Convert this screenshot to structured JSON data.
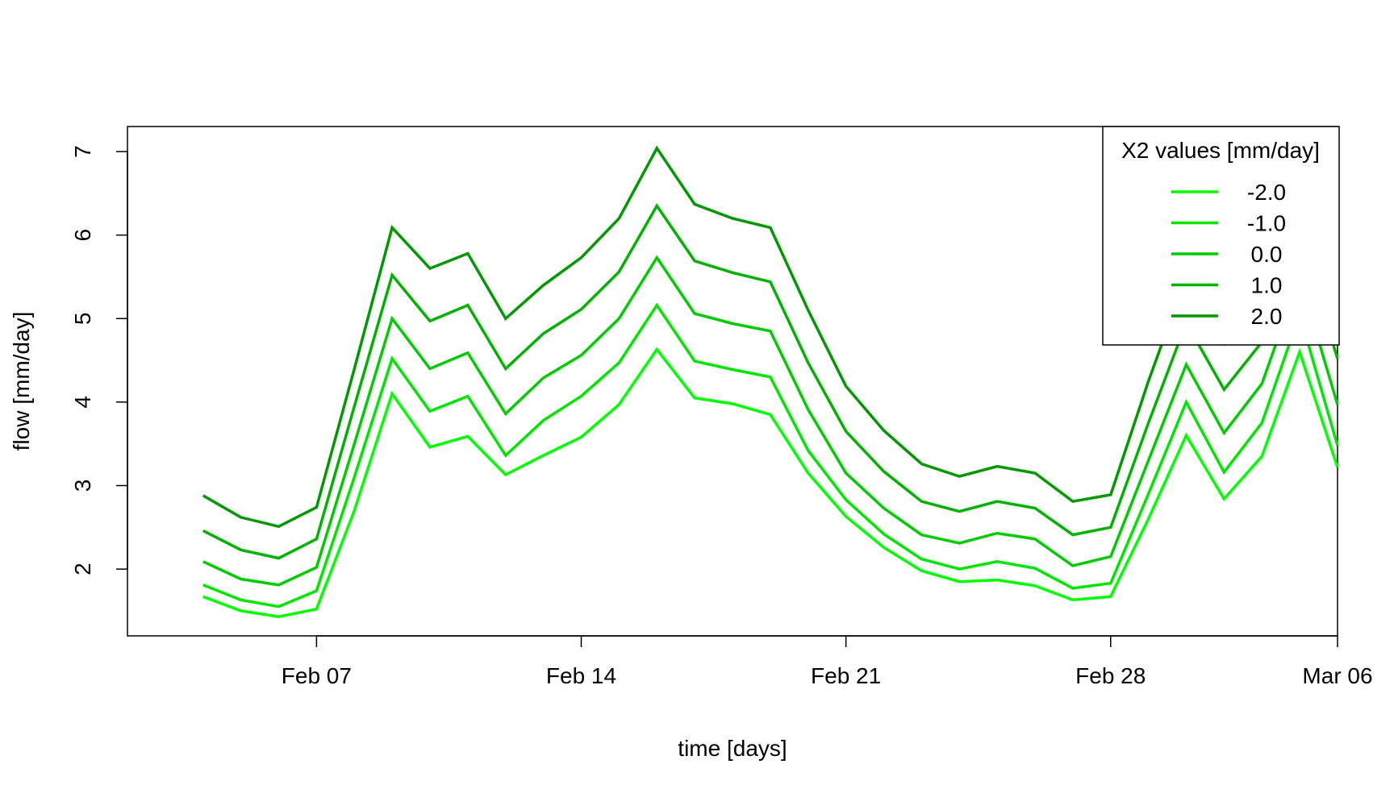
{
  "chart_data": {
    "type": "line",
    "title": "",
    "xlabel": "time [days]",
    "ylabel": "flow [mm/day]",
    "x_ticks": [
      "Feb 07",
      "Feb 14",
      "Feb 21",
      "Feb 28",
      "Mar 06"
    ],
    "x_tick_dates": [
      "2022-02-07",
      "2022-02-14",
      "2022-02-21",
      "2022-02-28",
      "2022-03-06"
    ],
    "y_ticks": [
      2,
      3,
      4,
      5,
      6,
      7
    ],
    "xlim": [
      "2022-02-02",
      "2022-03-06"
    ],
    "ylim": [
      1.2,
      7.3
    ],
    "grid": false,
    "legend": {
      "title": "X2 values [mm/day]",
      "position": "top-right"
    },
    "x": [
      "2022-02-04",
      "2022-02-05",
      "2022-02-06",
      "2022-02-07",
      "2022-02-08",
      "2022-02-09",
      "2022-02-10",
      "2022-02-11",
      "2022-02-12",
      "2022-02-13",
      "2022-02-14",
      "2022-02-15",
      "2022-02-16",
      "2022-02-17",
      "2022-02-18",
      "2022-02-19",
      "2022-02-20",
      "2022-02-21",
      "2022-02-22",
      "2022-02-23",
      "2022-02-24",
      "2022-02-25",
      "2022-02-26",
      "2022-02-27",
      "2022-02-28",
      "2022-03-01",
      "2022-03-02",
      "2022-03-03",
      "2022-03-04",
      "2022-03-05",
      "2022-03-06"
    ],
    "series": [
      {
        "name": "-2.0",
        "color": "#00ff00",
        "values": [
          1.67,
          1.5,
          1.43,
          1.52,
          2.7,
          4.1,
          3.46,
          3.59,
          3.13,
          3.36,
          3.58,
          3.97,
          4.63,
          4.05,
          3.98,
          3.85,
          3.15,
          2.63,
          2.26,
          1.98,
          1.85,
          1.87,
          1.8,
          1.63,
          1.67,
          2.6,
          3.6,
          2.84,
          3.35,
          4.6,
          3.22
        ]
      },
      {
        "name": "-1.0",
        "color": "#00e600",
        "values": [
          1.81,
          1.63,
          1.55,
          1.74,
          3.1,
          4.52,
          3.89,
          4.07,
          3.36,
          3.78,
          4.07,
          4.47,
          5.16,
          4.49,
          4.39,
          4.3,
          3.42,
          2.83,
          2.42,
          2.12,
          2.0,
          2.09,
          2.01,
          1.77,
          1.83,
          2.9,
          4.0,
          3.16,
          3.75,
          5.05,
          3.48
        ]
      },
      {
        "name": "0.0",
        "color": "#00cc00",
        "values": [
          2.09,
          1.88,
          1.81,
          2.02,
          3.5,
          5.0,
          4.4,
          4.59,
          3.86,
          4.29,
          4.56,
          5.0,
          5.73,
          5.06,
          4.94,
          4.85,
          3.91,
          3.15,
          2.73,
          2.41,
          2.31,
          2.43,
          2.36,
          2.04,
          2.15,
          3.3,
          4.45,
          3.63,
          4.22,
          5.5,
          3.97
        ]
      },
      {
        "name": "1.0",
        "color": "#00b300",
        "values": [
          2.46,
          2.23,
          2.13,
          2.36,
          3.95,
          5.52,
          4.97,
          5.16,
          4.4,
          4.82,
          5.11,
          5.56,
          6.35,
          5.69,
          5.55,
          5.44,
          4.47,
          3.65,
          3.17,
          2.81,
          2.69,
          2.81,
          2.73,
          2.41,
          2.5,
          3.75,
          4.95,
          4.15,
          4.72,
          6.0,
          4.52
        ]
      },
      {
        "name": "2.0",
        "color": "#009900",
        "values": [
          2.88,
          2.62,
          2.51,
          2.74,
          4.4,
          6.09,
          5.6,
          5.78,
          5.0,
          5.4,
          5.73,
          6.2,
          7.04,
          6.37,
          6.2,
          6.09,
          5.1,
          4.19,
          3.66,
          3.26,
          3.11,
          3.23,
          3.15,
          2.81,
          2.89,
          4.25,
          5.5,
          4.7,
          5.3,
          6.6,
          5.1
        ]
      }
    ]
  }
}
